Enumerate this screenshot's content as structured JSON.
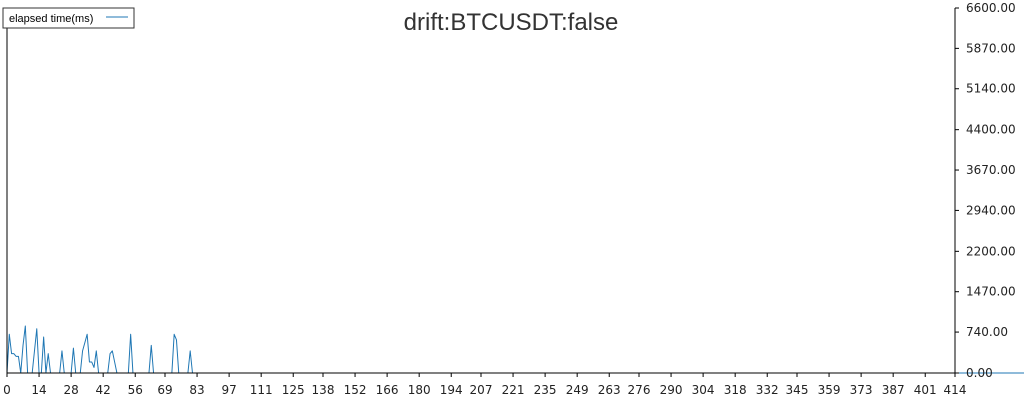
{
  "chart_data": {
    "type": "line",
    "title": "drift:BTCUSDT:false",
    "xlabel": "",
    "ylabel": "",
    "ylim": [
      0,
      6600
    ],
    "xlim": [
      0,
      414
    ],
    "x_ticks": [
      "0",
      "14",
      "28",
      "42",
      "56",
      "69",
      "83",
      "97",
      "111",
      "125",
      "138",
      "152",
      "166",
      "180",
      "194",
      "207",
      "221",
      "235",
      "249",
      "263",
      "276",
      "290",
      "304",
      "318",
      "332",
      "345",
      "359",
      "373",
      "387",
      "401",
      "414"
    ],
    "y_ticks": [
      "0.00",
      "740.00",
      "1470.00",
      "2200.00",
      "2940.00",
      "3670.00",
      "4400.00",
      "5140.00",
      "5870.00",
      "6600.00"
    ],
    "legend_position": "top-left",
    "grid": false,
    "series": [
      {
        "name": "elapsed time(ms)",
        "color": "#1f77b4",
        "values": [
          0,
          700,
          350,
          350,
          300,
          300,
          0,
          500,
          850,
          0,
          0,
          0,
          400,
          800,
          0,
          0,
          650,
          0,
          350,
          0,
          0,
          0,
          0,
          0,
          400,
          0,
          0,
          0,
          0,
          450,
          0,
          0,
          0,
          400,
          550,
          700,
          200,
          200,
          100,
          400,
          0,
          0,
          0,
          0,
          0,
          350,
          400,
          200,
          0,
          0,
          0,
          0,
          0,
          0,
          700,
          0,
          0,
          0,
          0,
          0,
          0,
          0,
          0,
          500,
          0,
          0,
          0,
          0,
          0,
          0,
          0,
          0,
          0,
          700,
          600,
          0,
          0,
          0,
          0,
          0,
          400,
          0,
          0,
          0,
          0,
          0,
          0,
          0,
          0,
          0,
          0,
          0,
          0,
          0,
          0,
          0,
          0,
          0,
          0,
          0,
          0,
          0,
          0,
          0,
          0,
          0,
          0,
          0,
          0,
          0,
          0,
          0,
          0,
          0,
          0,
          0,
          0,
          0,
          0,
          0,
          0,
          0,
          0,
          0,
          0,
          0,
          0,
          0,
          0,
          0,
          0,
          0,
          0,
          0,
          0,
          0,
          0,
          0,
          0,
          0,
          0,
          0,
          0,
          0,
          0,
          0,
          0,
          0,
          0,
          0,
          0,
          0,
          0,
          0,
          0,
          0,
          0,
          0,
          0,
          0,
          0,
          0,
          0,
          0,
          0,
          0,
          0,
          0,
          0,
          0,
          0,
          0,
          0,
          0,
          0,
          0,
          0,
          0,
          0,
          0,
          0,
          0,
          0,
          0,
          0,
          0,
          0,
          0,
          0,
          0,
          0,
          0,
          0,
          0,
          0,
          0,
          0,
          0,
          0,
          0,
          0,
          0,
          0,
          0,
          0,
          0,
          0,
          0,
          0,
          0,
          0,
          0,
          0,
          0,
          0,
          0,
          0,
          0,
          0,
          0,
          0,
          0,
          0,
          0,
          0,
          0,
          0,
          0,
          0,
          0,
          0,
          0,
          0,
          0,
          0,
          0,
          0,
          0,
          0,
          0,
          0,
          0,
          0,
          0,
          0,
          0,
          0,
          0,
          0,
          0,
          0,
          0,
          0,
          0,
          0,
          0,
          0,
          0,
          0,
          0,
          0,
          0,
          0,
          0,
          0,
          0,
          0,
          0,
          0,
          0,
          0,
          0,
          0,
          0,
          0,
          0,
          0,
          0,
          0,
          0,
          0,
          0,
          0,
          0,
          0,
          0,
          0,
          0,
          0,
          0,
          0,
          0,
          0,
          0,
          0,
          0,
          0,
          0,
          0,
          0,
          0,
          0,
          0,
          0,
          0,
          0,
          0,
          0,
          0,
          0,
          0,
          0,
          0,
          0,
          0,
          0,
          0,
          0,
          0,
          0,
          0,
          0,
          0,
          0,
          0,
          0,
          0,
          0,
          0,
          0,
          0,
          0,
          0,
          0,
          0,
          0,
          0,
          0,
          0,
          0,
          0,
          0,
          0,
          0,
          0,
          0,
          0,
          0,
          0,
          0,
          0,
          0,
          0,
          0,
          0,
          0,
          0,
          0,
          0,
          0,
          0,
          0,
          0,
          0,
          0,
          0,
          0,
          0,
          0,
          0,
          0,
          0,
          0,
          0,
          0,
          0,
          0,
          0,
          0,
          0,
          0,
          0,
          0,
          0,
          0,
          0,
          0,
          0,
          0,
          0,
          0,
          0,
          0,
          0,
          0,
          0,
          0,
          0,
          0,
          0,
          0,
          0,
          0,
          0,
          0,
          0,
          0,
          0,
          0,
          0,
          0,
          0,
          0,
          0,
          0,
          0,
          0,
          0,
          0,
          0,
          0,
          0,
          0,
          0,
          0,
          0,
          0,
          0,
          0,
          0,
          0,
          0,
          0,
          0,
          0,
          0,
          0,
          0,
          0,
          0,
          0,
          0,
          0,
          0,
          0,
          0,
          0,
          0,
          0,
          0,
          0,
          0,
          0,
          0,
          0,
          0,
          0,
          0,
          0,
          0,
          0,
          0,
          0,
          0,
          0,
          0,
          0,
          0,
          0,
          0,
          0,
          0,
          0,
          0,
          0,
          0,
          0,
          0,
          0,
          0,
          0,
          0,
          0,
          0,
          0,
          0,
          0,
          0,
          0,
          0,
          0,
          0,
          0,
          0,
          0,
          0,
          0,
          0,
          0,
          0,
          0,
          0,
          0,
          0,
          0
        ]
      }
    ]
  }
}
